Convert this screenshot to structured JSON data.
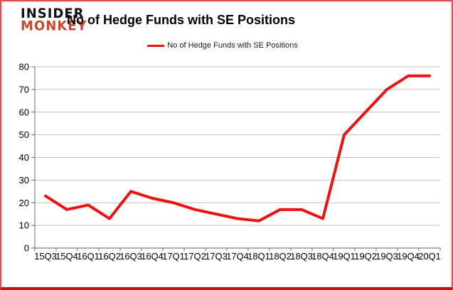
{
  "branding": {
    "insider": "INSIDER",
    "monkey": "MONKEY"
  },
  "title": "No of Hedge Funds with SE Positions",
  "legend": {
    "label": "No of Hedge Funds with SE Positions"
  },
  "chart_data": {
    "type": "line",
    "title": "No of Hedge Funds with SE Positions",
    "categories": [
      "15Q3",
      "15Q4",
      "16Q1",
      "16Q2",
      "16Q3",
      "16Q4",
      "17Q1",
      "17Q2",
      "17Q3",
      "17Q4",
      "18Q1",
      "18Q2",
      "18Q3",
      "18Q4",
      "19Q1",
      "19Q2",
      "19Q3",
      "19Q4",
      "20Q1"
    ],
    "series": [
      {
        "name": "No of Hedge Funds with SE Positions",
        "color": "#ee1111",
        "values": [
          23,
          17,
          19,
          13,
          25,
          22,
          20,
          17,
          15,
          13,
          12,
          17,
          17,
          13,
          50,
          60,
          70,
          76,
          76
        ]
      }
    ],
    "ylim": [
      0,
      80
    ],
    "yticks": [
      0,
      10,
      20,
      30,
      40,
      50,
      60,
      70,
      80
    ],
    "xlabel": "",
    "ylabel": "",
    "grid": "horizontal",
    "legend_position": "top-center",
    "markers": false,
    "line_width": 4
  },
  "colors": {
    "line": "#ee1111",
    "gridline": "#c0c0c0",
    "axis": "#7f7f7f",
    "label_text": "#000000",
    "frame_border": "#d94f4f",
    "background": "#ffffff"
  }
}
